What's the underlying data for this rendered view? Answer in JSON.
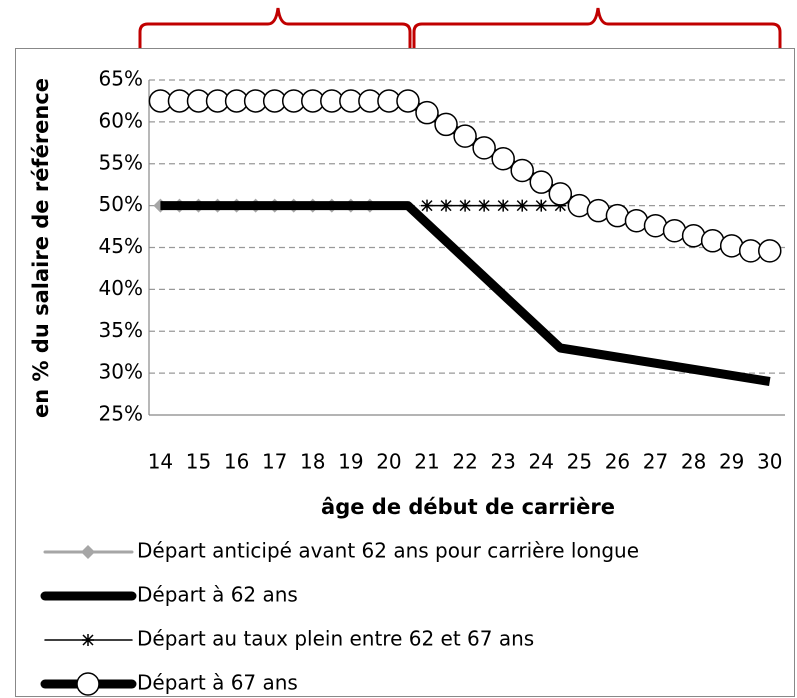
{
  "chart_data": {
    "type": "line",
    "y_label": "en % du salaire de référence",
    "x_label": "âge de début de carrière",
    "xlim": [
      13.7,
      30.4
    ],
    "xticks": [
      14,
      15,
      16,
      17,
      18,
      19,
      20,
      21,
      22,
      23,
      24,
      25,
      26,
      27,
      28,
      29,
      30
    ],
    "ylim": [
      25,
      65
    ],
    "yticks": [
      {
        "value": 25,
        "label": "25%"
      },
      {
        "value": 30,
        "label": "30%"
      },
      {
        "value": 35,
        "label": "35%"
      },
      {
        "value": 40,
        "label": "40%"
      },
      {
        "value": 45,
        "label": "45%"
      },
      {
        "value": 50,
        "label": "50%"
      },
      {
        "value": 55,
        "label": "55%"
      },
      {
        "value": 60,
        "label": "60%"
      },
      {
        "value": 65,
        "label": "65%"
      }
    ],
    "grid": true,
    "legend": "bottom",
    "series": [
      {
        "name": "Départ anticipé avant 62 ans pour carrière longue",
        "color": "#a6a6a6",
        "marker": "diamond",
        "x": [
          14,
          14.5,
          15,
          15.5,
          16,
          16.5,
          17,
          17.5,
          18,
          18.5,
          19,
          19.5
        ],
        "values": [
          50,
          50,
          50,
          50,
          50,
          50,
          50,
          50,
          50,
          50,
          50,
          50
        ]
      },
      {
        "name": "Départ à 62 ans",
        "color": "#000000",
        "marker": "none",
        "x": [
          14,
          20.5,
          24.5,
          30
        ],
        "values": [
          50,
          50,
          33,
          29
        ]
      },
      {
        "name": "Départ au taux plein entre 62 et 67 ans",
        "color": "#000000",
        "marker": "star",
        "x": [
          21,
          21.5,
          22,
          22.5,
          23,
          23.5,
          24,
          24.5
        ],
        "values": [
          50,
          50,
          50,
          50,
          50,
          50,
          50,
          50
        ]
      },
      {
        "name": "Départ à 67 ans",
        "color": "#000000",
        "marker": "circle",
        "x": [
          14,
          14.5,
          15,
          15.5,
          16,
          16.5,
          17,
          17.5,
          18,
          18.5,
          19,
          19.5,
          20,
          20.5,
          21,
          21.5,
          22,
          22.5,
          23,
          23.5,
          24,
          24.5,
          25,
          25.5,
          26,
          26.5,
          27,
          27.5,
          28,
          28.5,
          29,
          29.5,
          30
        ],
        "values": [
          62.5,
          62.5,
          62.5,
          62.5,
          62.5,
          62.5,
          62.5,
          62.5,
          62.5,
          62.5,
          62.5,
          62.5,
          62.5,
          62.5,
          61.1,
          59.7,
          58.3,
          56.9,
          55.6,
          54.2,
          52.8,
          51.4,
          50,
          49.4,
          48.8,
          48.2,
          47.6,
          47,
          46.4,
          45.8,
          45.2,
          44.6,
          44.6
        ]
      }
    ]
  }
}
